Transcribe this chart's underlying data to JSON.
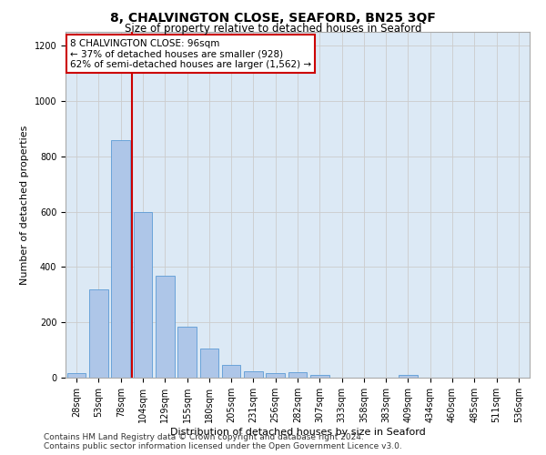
{
  "title": "8, CHALVINGTON CLOSE, SEAFORD, BN25 3QF",
  "subtitle": "Size of property relative to detached houses in Seaford",
  "xlabel": "Distribution of detached houses by size in Seaford",
  "ylabel": "Number of detached properties",
  "footnote1": "Contains HM Land Registry data © Crown copyright and database right 2024.",
  "footnote2": "Contains public sector information licensed under the Open Government Licence v3.0.",
  "bar_labels": [
    "28sqm",
    "53sqm",
    "78sqm",
    "104sqm",
    "129sqm",
    "155sqm",
    "180sqm",
    "205sqm",
    "231sqm",
    "256sqm",
    "282sqm",
    "307sqm",
    "333sqm",
    "358sqm",
    "383sqm",
    "409sqm",
    "434sqm",
    "460sqm",
    "485sqm",
    "511sqm",
    "536sqm"
  ],
  "bar_values": [
    15,
    318,
    858,
    600,
    370,
    185,
    105,
    47,
    22,
    18,
    20,
    10,
    0,
    0,
    0,
    10,
    0,
    0,
    0,
    0,
    0
  ],
  "bar_color": "#aec6e8",
  "bar_edge_color": "#5b9bd5",
  "ylim": [
    0,
    1250
  ],
  "yticks": [
    0,
    200,
    400,
    600,
    800,
    1000,
    1200
  ],
  "vline_x": 2.5,
  "vline_color": "#cc0000",
  "annotation_text": "8 CHALVINGTON CLOSE: 96sqm\n← 37% of detached houses are smaller (928)\n62% of semi-detached houses are larger (1,562) →",
  "annotation_box_color": "#ffffff",
  "annotation_box_edge": "#cc0000",
  "grid_color": "#cccccc",
  "bg_color": "#dce9f5",
  "fig_bg_color": "#ffffff",
  "title_fontsize": 10,
  "subtitle_fontsize": 8.5,
  "xlabel_fontsize": 8,
  "ylabel_fontsize": 8,
  "tick_fontsize": 7,
  "annot_fontsize": 7.5,
  "footnote_fontsize": 6.5
}
